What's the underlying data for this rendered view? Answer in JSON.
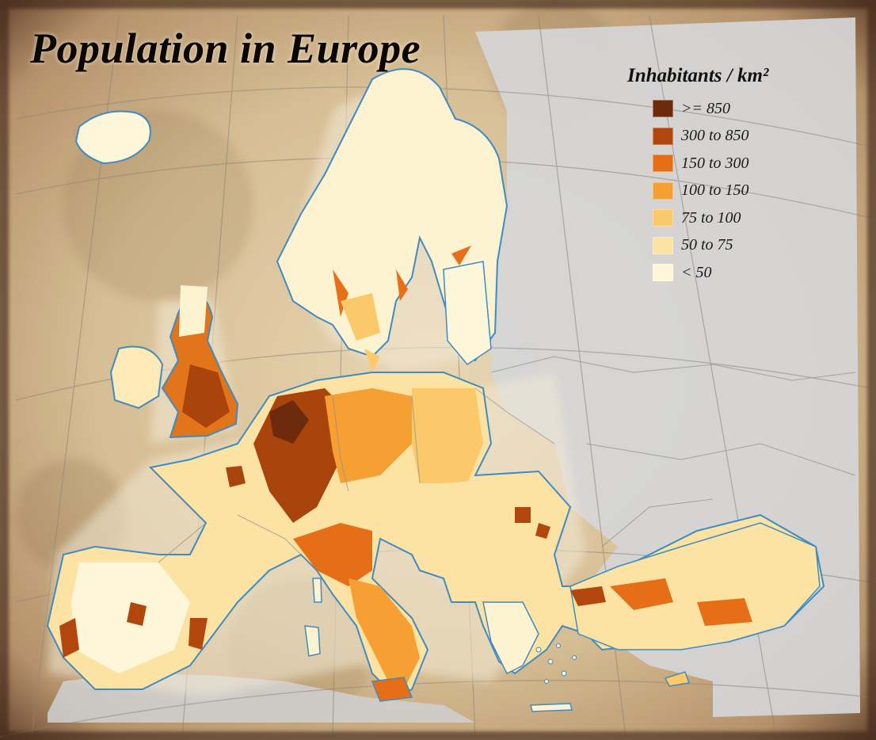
{
  "map": {
    "title": "Population in Europe",
    "theme": "Population density by region (choropleth)",
    "colors": {
      "parchment": "#d9c19a",
      "sea_outline": "#3f8bc2",
      "non_covered_land": "#d8d8d8",
      "grid": "#8a8578"
    }
  },
  "legend": {
    "title": "Inhabitants / km²",
    "classes": [
      {
        "label": ">= 850",
        "color": "#6e2a0c"
      },
      {
        "label": "300 to 850",
        "color": "#b2470e"
      },
      {
        "label": "150 to 300",
        "color": "#e56e17"
      },
      {
        "label": "100 to 150",
        "color": "#f6a033"
      },
      {
        "label": "75 to 100",
        "color": "#fcc96a"
      },
      {
        "label": "50 to 75",
        "color": "#fde3a3"
      },
      {
        "label": "< 50",
        "color": "#fdf6d8"
      }
    ]
  }
}
